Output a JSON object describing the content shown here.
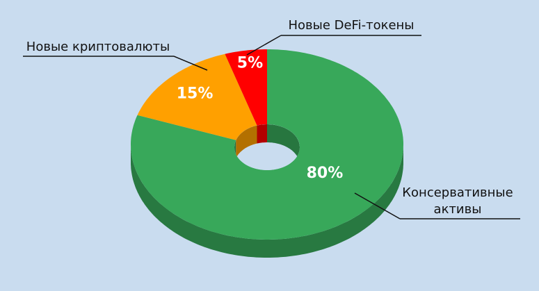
{
  "chart_data": {
    "type": "pie",
    "categories": [
      "Консервативные активы",
      "Новые криптовалюты",
      "Новые DeFi-токены"
    ],
    "values": [
      80,
      15,
      5
    ],
    "value_labels": [
      "80%",
      "15%",
      "5%"
    ],
    "colors": [
      "#38a85a",
      "#ffa000",
      "#ff0000"
    ]
  }
}
